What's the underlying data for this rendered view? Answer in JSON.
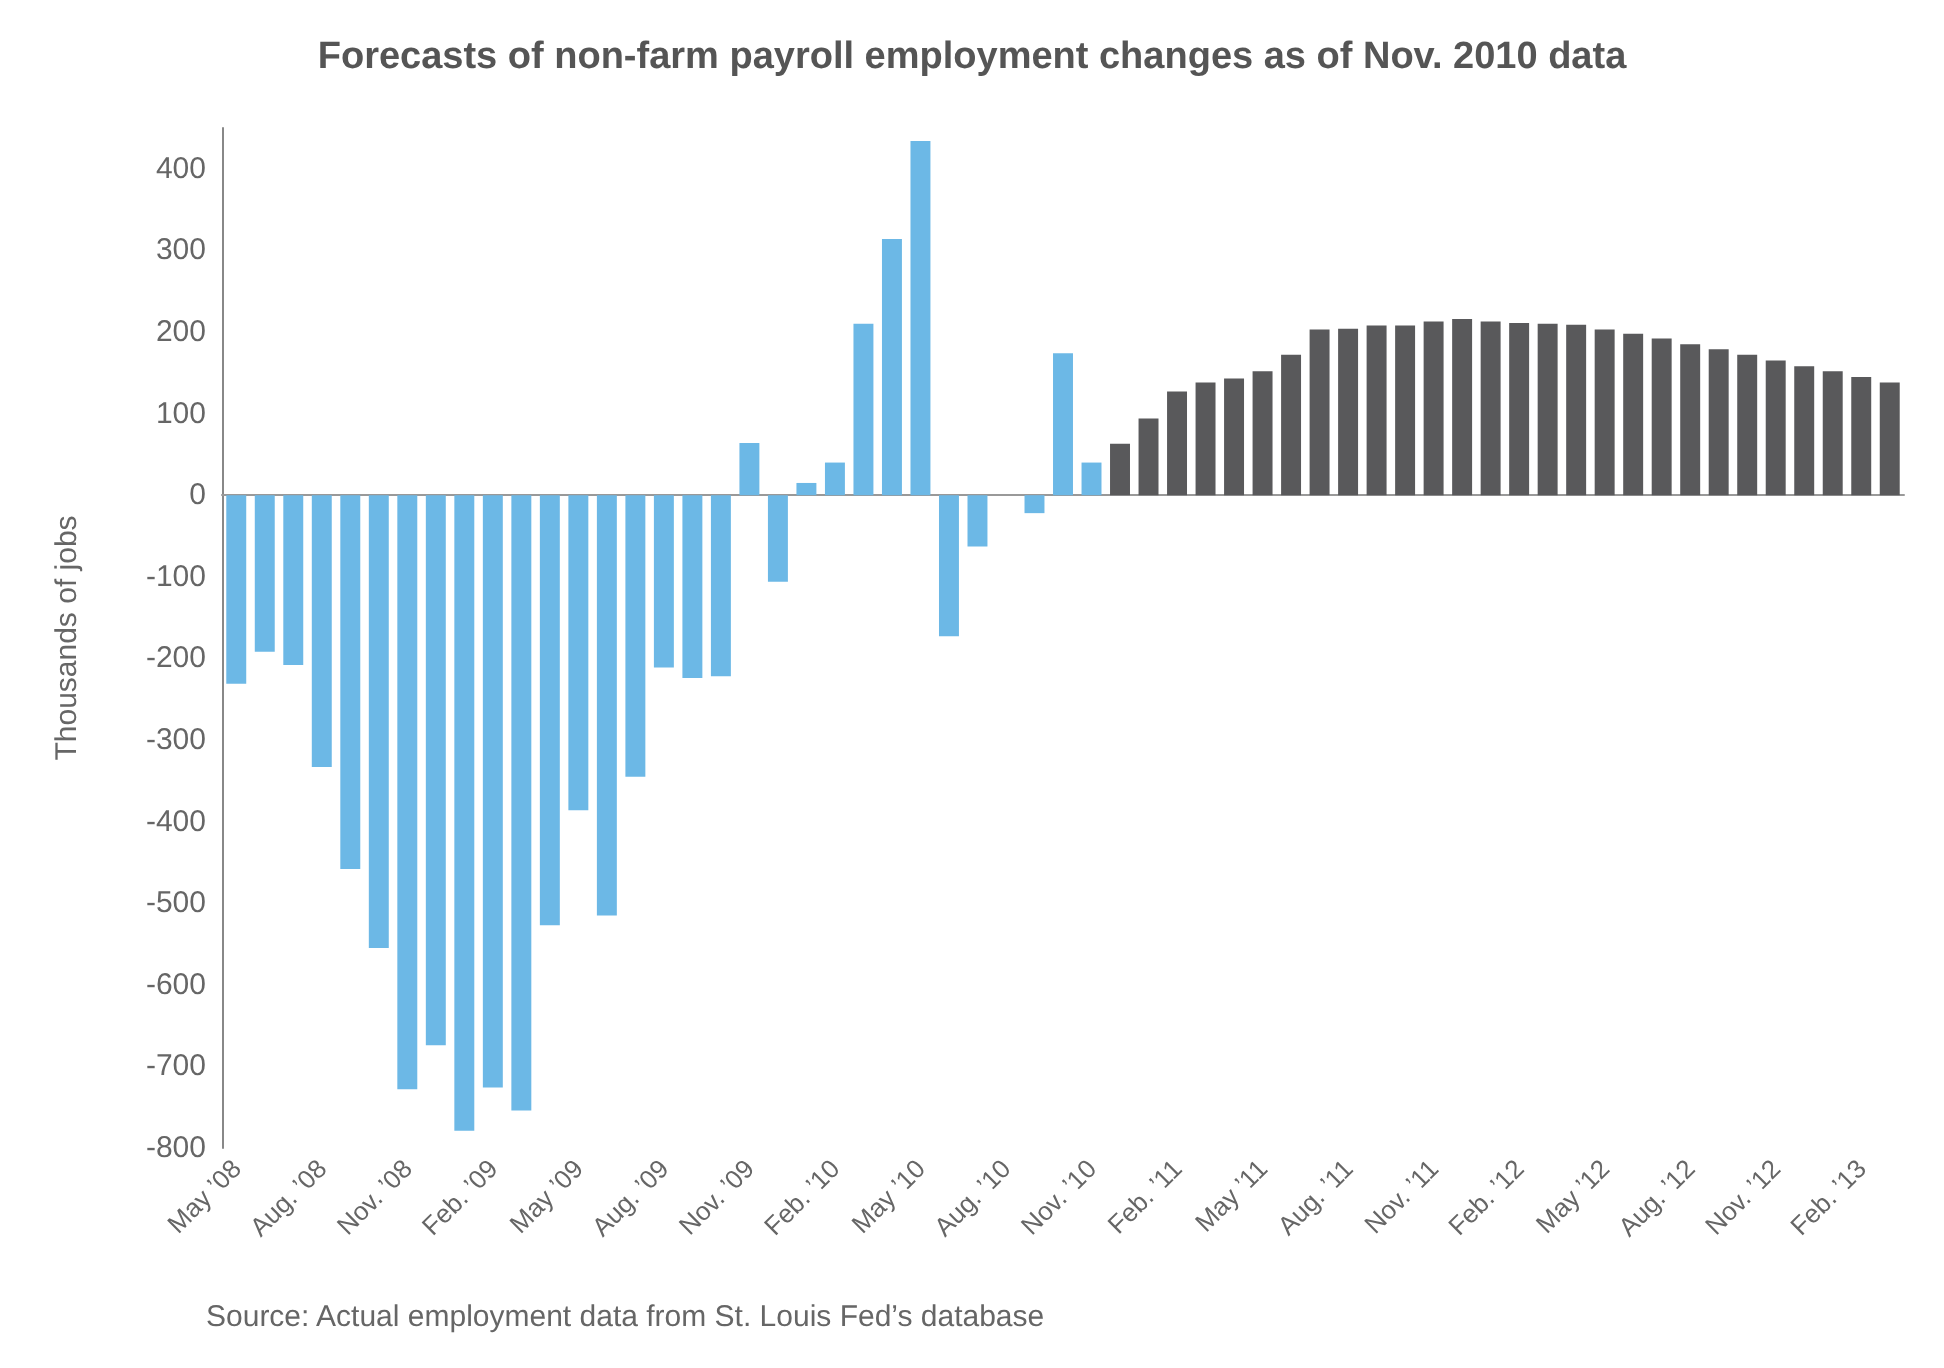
{
  "chart_data": {
    "type": "bar",
    "title": "Forecasts of non-farm payroll employment changes as of Nov. 2010 data",
    "ylabel": "Thousands of jobs",
    "categories": [
      "May ’08",
      null,
      null,
      "Aug. ’08",
      null,
      null,
      "Nov. ’08",
      null,
      null,
      "Feb. ’09",
      null,
      null,
      "May ’09",
      null,
      null,
      "Aug. ’09",
      null,
      null,
      "Nov. ’09",
      null,
      null,
      "Feb. ’10",
      null,
      null,
      "May ’10",
      null,
      null,
      "Aug. ’10",
      null,
      null,
      "Nov. ’10",
      null,
      null,
      "Feb. ’11",
      null,
      null,
      "May ’11",
      null,
      null,
      "Aug. ’11",
      null,
      null,
      "Nov. ’11",
      null,
      null,
      "Feb. ’12",
      null,
      null,
      "May ’12",
      null,
      null,
      "Aug. ’12",
      null,
      null,
      "Nov. ’12",
      null,
      null,
      "Feb. ’13",
      null
    ],
    "values": [
      -231,
      -192,
      -208,
      -333,
      -458,
      -555,
      -728,
      -674,
      -779,
      -726,
      -754,
      -527,
      -386,
      -515,
      -345,
      -211,
      -224,
      -222,
      64,
      -106,
      15,
      40,
      210,
      314,
      434,
      -173,
      -63,
      0,
      -22,
      174,
      40,
      63,
      94,
      127,
      138,
      143,
      152,
      172,
      203,
      204,
      208,
      208,
      213,
      216,
      213,
      211,
      210,
      209,
      203,
      198,
      192,
      185,
      179,
      172,
      165,
      158,
      152,
      145,
      138
    ],
    "colors": [
      "#6cb8e6",
      "#6cb8e6",
      "#6cb8e6",
      "#6cb8e6",
      "#6cb8e6",
      "#6cb8e6",
      "#6cb8e6",
      "#6cb8e6",
      "#6cb8e6",
      "#6cb8e6",
      "#6cb8e6",
      "#6cb8e6",
      "#6cb8e6",
      "#6cb8e6",
      "#6cb8e6",
      "#6cb8e6",
      "#6cb8e6",
      "#6cb8e6",
      "#6cb8e6",
      "#6cb8e6",
      "#6cb8e6",
      "#6cb8e6",
      "#6cb8e6",
      "#6cb8e6",
      "#6cb8e6",
      "#6cb8e6",
      "#6cb8e6",
      "#6cb8e6",
      "#6cb8e6",
      "#6cb8e6",
      "#6cb8e6",
      "#59595b",
      "#59595b",
      "#59595b",
      "#59595b",
      "#59595b",
      "#59595b",
      "#59595b",
      "#59595b",
      "#59595b",
      "#59595b",
      "#59595b",
      "#59595b",
      "#59595b",
      "#59595b",
      "#59595b",
      "#59595b",
      "#59595b",
      "#59595b",
      "#59595b",
      "#59595b",
      "#59595b",
      "#59595b",
      "#59595b",
      "#59595b",
      "#59595b",
      "#59595b",
      "#59595b",
      "#59595b"
    ],
    "ylim": [
      -800,
      450
    ],
    "yticks": [
      -800,
      -700,
      -600,
      -500,
      -400,
      -300,
      -200,
      -100,
      0,
      100,
      200,
      300,
      400
    ],
    "annotations": [
      "Source: Actual employment data from St. Louis Fed’s database"
    ]
  }
}
